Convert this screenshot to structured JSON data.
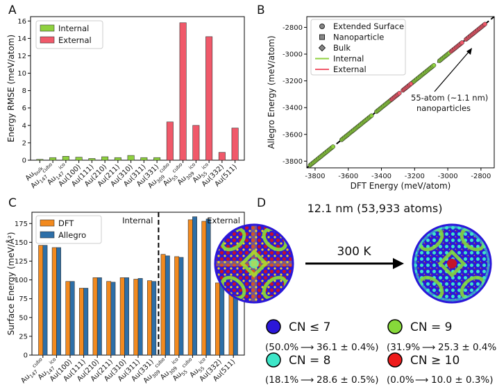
{
  "chart_data": [
    {
      "panel": "A",
      "type": "bar",
      "ylabel": "Energy RMSE (meV/atom)",
      "xlabel": "",
      "ylim": [
        0,
        16.5
      ],
      "yticks": [
        0,
        2,
        4,
        6,
        8,
        10,
        12,
        14,
        16
      ],
      "categories": [
        {
          "base": "Au",
          "sub": "bulk",
          "sup": ""
        },
        {
          "base": "Au",
          "sub": "147",
          "sup": "cubo"
        },
        {
          "base": "Au",
          "sub": "147",
          "sup": "ico"
        },
        {
          "base": "Au(100)",
          "sub": "",
          "sup": ""
        },
        {
          "base": "Au(111)",
          "sub": "",
          "sup": ""
        },
        {
          "base": "Au(210)",
          "sub": "",
          "sup": ""
        },
        {
          "base": "Au(211)",
          "sub": "",
          "sup": ""
        },
        {
          "base": "Au(310)",
          "sub": "",
          "sup": ""
        },
        {
          "base": "Au(311)",
          "sub": "",
          "sup": ""
        },
        {
          "base": "Au(331)",
          "sub": "",
          "sup": ""
        },
        {
          "base": "Au",
          "sub": "309",
          "sup": "cubo"
        },
        {
          "base": "Au",
          "sub": "55",
          "sup": "cubo"
        },
        {
          "base": "Au",
          "sub": "309",
          "sup": "ico"
        },
        {
          "base": "Au",
          "sub": "55",
          "sup": "ico"
        },
        {
          "base": "Au(332)",
          "sub": "",
          "sup": ""
        },
        {
          "base": "Au(511)",
          "sub": "",
          "sup": ""
        }
      ],
      "series": [
        {
          "name": "Internal",
          "color": "#8fd13f",
          "values": [
            0.1,
            0.3,
            0.45,
            0.35,
            0.2,
            0.4,
            0.3,
            0.55,
            0.3,
            0.3,
            null,
            null,
            null,
            null,
            null,
            null
          ]
        },
        {
          "name": "External",
          "color": "#f0596a",
          "values": [
            null,
            null,
            null,
            null,
            null,
            null,
            null,
            null,
            null,
            null,
            4.4,
            15.8,
            4.0,
            14.2,
            0.9,
            3.7
          ]
        }
      ]
    },
    {
      "panel": "B",
      "type": "scatter",
      "xlabel": "DFT Energy (meV/atom)",
      "ylabel": "Allegro Energy (meV/atom)",
      "xlim": [
        -3850,
        -2720
      ],
      "ylim": [
        -3850,
        -2720
      ],
      "xticks": [
        -3800,
        -3600,
        -3400,
        -3200,
        -3000,
        -2800
      ],
      "yticks": [
        -3800,
        -3600,
        -3400,
        -3200,
        -3000,
        -2800
      ],
      "legend": [
        "Extended Surface",
        "Nanoparticle",
        "Bulk",
        "Internal",
        "External"
      ],
      "series": [
        {
          "name": "Internal",
          "color": "#8fd13f",
          "segments": [
            [
              -3830,
              -3690
            ],
            [
              -3640,
              -3460
            ],
            [
              -3430,
              -3300
            ],
            [
              -3270,
              -3080
            ],
            [
              -3050,
              -2990
            ]
          ]
        },
        {
          "name": "External",
          "color": "#f0596a",
          "segments": [
            [
              -3340,
              -3290
            ],
            [
              -3270,
              -3220
            ],
            [
              -2980,
              -2910
            ],
            [
              -2890,
              -2775
            ]
          ]
        }
      ],
      "annotation": "55-atom (~1.1 nm) nanoparticles"
    },
    {
      "panel": "C",
      "type": "bar",
      "ylabel": "Surface Energy (meV/Å²)",
      "xlabel": "",
      "ylim": [
        0,
        190
      ],
      "yticks": [
        0,
        25,
        50,
        75,
        100,
        125,
        150,
        175
      ],
      "region_labels": [
        "Internal",
        "External"
      ],
      "categories": [
        {
          "base": "Au",
          "sub": "147",
          "sup": "cubo"
        },
        {
          "base": "Au",
          "sub": "147",
          "sup": "ico"
        },
        {
          "base": "Au(100)",
          "sub": "",
          "sup": ""
        },
        {
          "base": "Au(111)",
          "sub": "",
          "sup": ""
        },
        {
          "base": "Au(210)",
          "sub": "",
          "sup": ""
        },
        {
          "base": "Au(211)",
          "sub": "",
          "sup": ""
        },
        {
          "base": "Au(310)",
          "sub": "",
          "sup": ""
        },
        {
          "base": "Au(311)",
          "sub": "",
          "sup": ""
        },
        {
          "base": "Au(331)",
          "sub": "",
          "sup": ""
        },
        {
          "base": "Au",
          "sub": "309",
          "sup": "cubo"
        },
        {
          "base": "Au",
          "sub": "309",
          "sup": "ico"
        },
        {
          "base": "Au",
          "sub": "55",
          "sup": "cubo"
        },
        {
          "base": "Au",
          "sub": "55",
          "sup": "ico"
        },
        {
          "base": "Au(332)",
          "sub": "",
          "sup": ""
        },
        {
          "base": "Au(511)",
          "sub": "",
          "sup": ""
        }
      ],
      "series": [
        {
          "name": "DFT",
          "color": "#f28a1f",
          "values": [
            146,
            143,
            98,
            89,
            103,
            98,
            103,
            101,
            99,
            134,
            131,
            180,
            178,
            96,
            101
          ]
        },
        {
          "name": "Allegro",
          "color": "#2d6fa8",
          "values": [
            146,
            143,
            98,
            89,
            103,
            97,
            103,
            102,
            98,
            132,
            130,
            184,
            181,
            96,
            102
          ]
        }
      ]
    }
  ],
  "panelD": {
    "title": "12.1 nm (53,933 atoms)",
    "temperature": "300 K",
    "legend": [
      {
        "label": "CN ≤ 7",
        "color": "#2b17d9",
        "from": "(50.0%",
        "to": "36.1 ± 0.4%)"
      },
      {
        "label": "CN = 9",
        "color": "#87d93a",
        "from": "(31.9%",
        "to": "25.3 ± 0.4%)"
      },
      {
        "label": "CN = 8",
        "color": "#3de6c8",
        "from": "(18.1%",
        "to": "28.6 ± 0.5%)"
      },
      {
        "label": "CN ≥ 10",
        "color": "#ee1b1b",
        "from": "(0.0%",
        "to": "10.0 ± 0.3%)"
      }
    ]
  },
  "panel_letters": [
    "A",
    "B",
    "C",
    "D"
  ]
}
